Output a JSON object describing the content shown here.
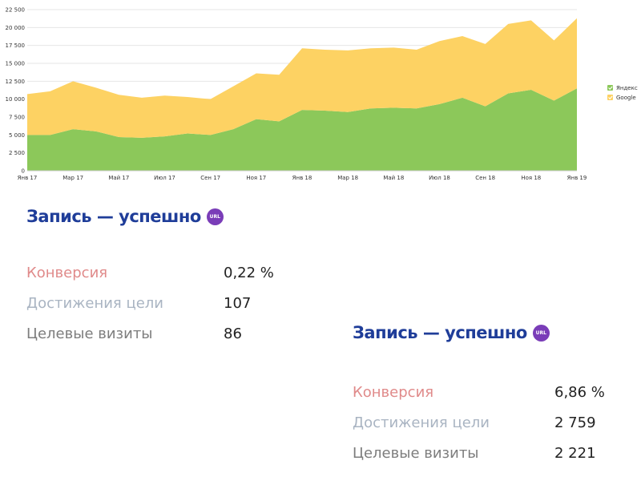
{
  "chart_data": {
    "type": "area",
    "stacked": true,
    "x": [
      "Янв 17",
      "Фев 17",
      "Мар 17",
      "Апр 17",
      "Май 17",
      "Июн 17",
      "Июл 17",
      "Авг 17",
      "Сен 17",
      "Окт 17",
      "Ноя 17",
      "Дек 17",
      "Янв 18",
      "Фев 18",
      "Мар 18",
      "Апр 18",
      "Май 18",
      "Июн 18",
      "Июл 18",
      "Авг 18",
      "Сен 18",
      "Окт 18",
      "Ноя 18",
      "Дек 18",
      "Янв 19"
    ],
    "x_tick_labels": [
      "Янв 17",
      "Мар 17",
      "Май 17",
      "Июл 17",
      "Сен 17",
      "Ноя 17",
      "Янв 18",
      "Мар 18",
      "Май 18",
      "Июл 18",
      "Сен 18",
      "Ноя 18",
      "Янв 19"
    ],
    "y_ticks": [
      0,
      2500,
      5000,
      7500,
      10000,
      12500,
      15000,
      17500,
      20000,
      22500
    ],
    "y_tick_labels": [
      "0",
      "2 500",
      "5 000",
      "7 500",
      "10 000",
      "12 500",
      "15 000",
      "17 500",
      "20 000",
      "22 500"
    ],
    "ylim": [
      0,
      22500
    ],
    "grid": true,
    "legend_position": "right",
    "series": [
      {
        "name": "Яндекс",
        "color": "#8cc85a",
        "values": [
          5000,
          5000,
          5800,
          5500,
          4700,
          4600,
          4800,
          5200,
          5000,
          5800,
          7200,
          6900,
          8500,
          8400,
          8200,
          8700,
          8800,
          8700,
          9300,
          10200,
          9000,
          10800,
          11300,
          9800,
          11500
        ]
      },
      {
        "name": "Google",
        "color": "#fdd263",
        "values": [
          5700,
          6100,
          6700,
          6100,
          5900,
          5600,
          5700,
          5100,
          5000,
          6000,
          6400,
          6500,
          8600,
          8500,
          8600,
          8400,
          8400,
          8200,
          8800,
          8600,
          8700,
          9700,
          9700,
          8400,
          9800
        ]
      }
    ]
  },
  "block1": {
    "title": "Запись — успешно",
    "badge": "URL",
    "conversion_label": "Конверсия",
    "conversion_value": "0,22 %",
    "goals_label": "Достижения цели",
    "goals_value": "107",
    "visits_label": "Целевые визиты",
    "visits_value": "86"
  },
  "block2": {
    "title": "Запись — успешно",
    "badge": "URL",
    "conversion_label": "Конверсия",
    "conversion_value": "6,86 %",
    "goals_label": "Достижения цели",
    "goals_value": "2 759",
    "visits_label": "Целевые визиты",
    "visits_value": "2 221"
  }
}
